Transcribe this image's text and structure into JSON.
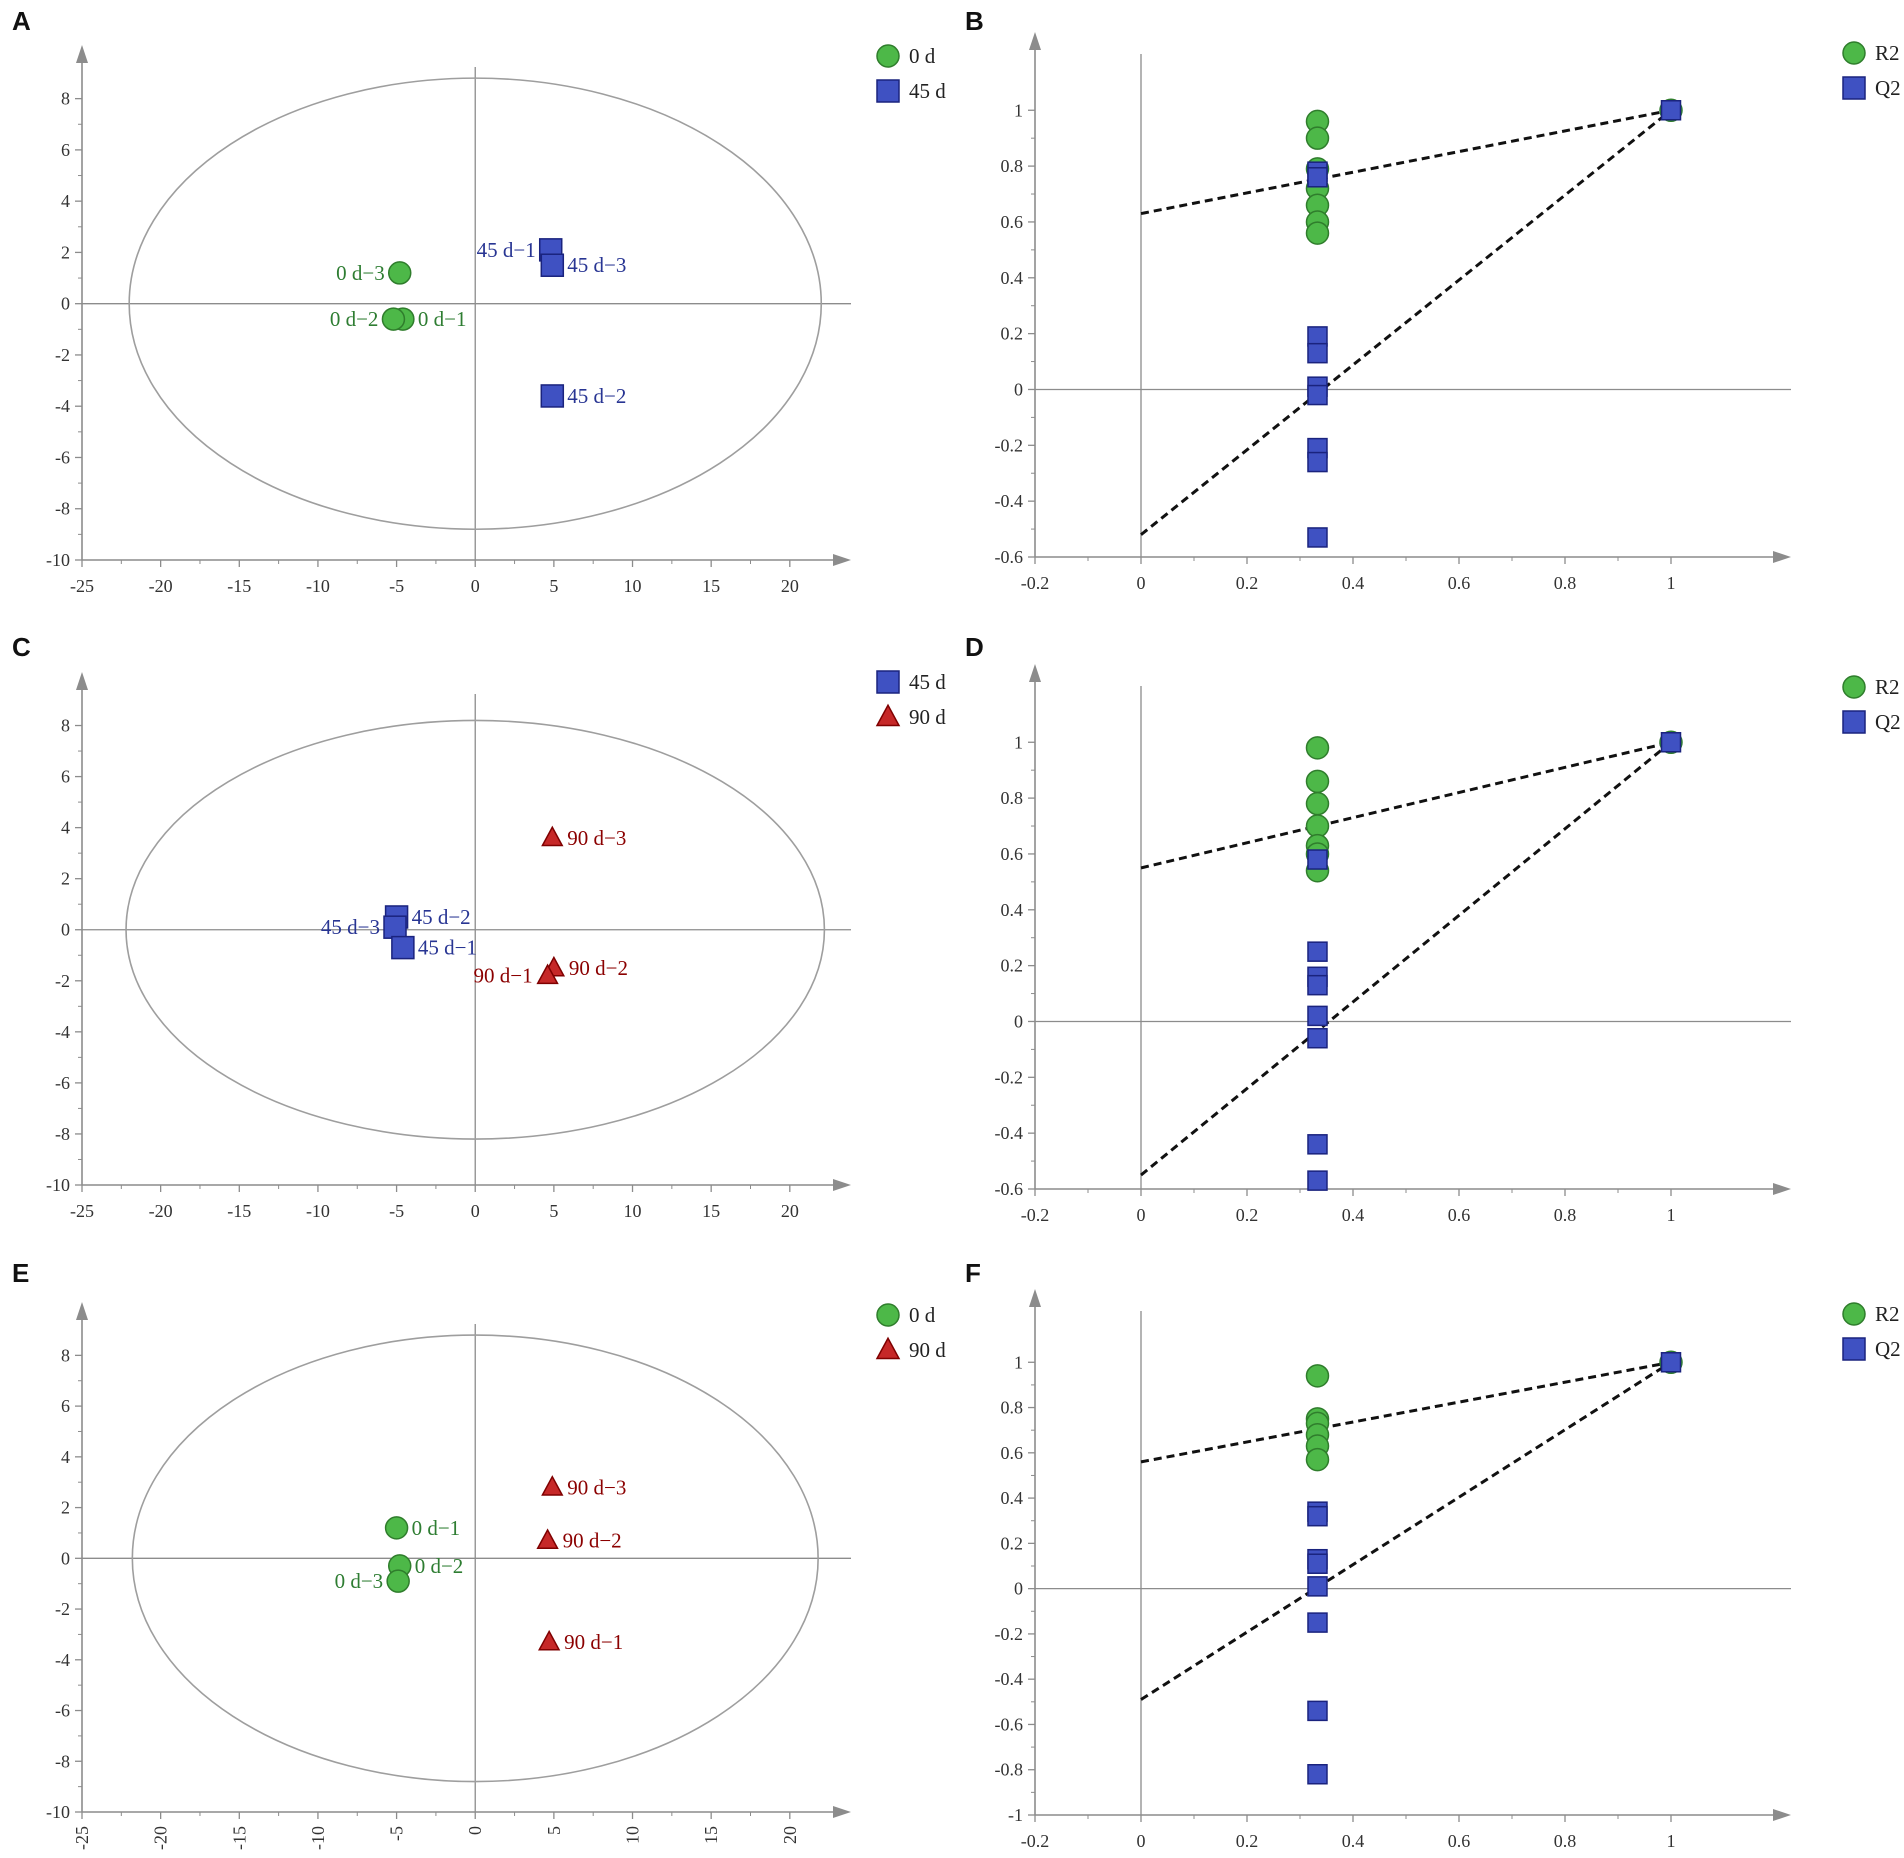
{
  "colors": {
    "green": "#4db848",
    "green_stroke": "#2f7d2c",
    "green_text": "#2e7d32",
    "blue": "#3f51c2",
    "blue_stroke": "#1a237e",
    "blue_text": "#283593",
    "red": "#c62828",
    "red_stroke": "#7f0000",
    "red_text": "#8b0000",
    "axis": "#8c8c8c",
    "trend": "#111111"
  },
  "chart_data": [
    {
      "id": "A",
      "letter": "A",
      "type": "scatter",
      "xlim": [
        -25,
        23
      ],
      "ylim": [
        -10,
        9
      ],
      "xticks": [
        -25,
        -20,
        -15,
        -10,
        -5,
        0,
        5,
        10,
        15,
        20
      ],
      "yticks": [
        -10,
        -8,
        -6,
        -4,
        -2,
        0,
        2,
        4,
        6,
        8
      ],
      "ellipse": {
        "rx": 22,
        "ry": 8.8
      },
      "legend": [
        {
          "label": "0 d",
          "marker": "circle",
          "color": "green"
        },
        {
          "label": "45 d",
          "marker": "square",
          "color": "blue"
        }
      ],
      "points": [
        {
          "label": "0 d−1",
          "x": -4.6,
          "y": -0.6,
          "marker": "circle",
          "color": "green",
          "label_side": "right"
        },
        {
          "label": "0 d−2",
          "x": -5.2,
          "y": -0.6,
          "marker": "circle",
          "color": "green",
          "label_side": "left"
        },
        {
          "label": "0 d−3",
          "x": -4.8,
          "y": 1.2,
          "marker": "circle",
          "color": "green",
          "label_side": "left"
        },
        {
          "label": "45 d−1",
          "x": 4.8,
          "y": 2.1,
          "marker": "square",
          "color": "blue",
          "label_side": "left"
        },
        {
          "label": "45 d−3",
          "x": 4.9,
          "y": 1.5,
          "marker": "square",
          "color": "blue",
          "label_side": "right"
        },
        {
          "label": "45 d−2",
          "x": 4.9,
          "y": -3.6,
          "marker": "square",
          "color": "blue",
          "label_side": "right"
        }
      ]
    },
    {
      "id": "B",
      "letter": "B",
      "type": "scatter",
      "xlim": [
        -0.2,
        1.2
      ],
      "ylim": [
        -0.6,
        1.18
      ],
      "xticks": [
        -0.2,
        0,
        0.2,
        0.4,
        0.6,
        0.8,
        1
      ],
      "xtick_labels": [
        "-0.2",
        "0",
        "0.2",
        "0.4",
        "0.6",
        "0.8",
        "1"
      ],
      "yticks": [
        -0.6,
        -0.4,
        -0.2,
        0,
        0.2,
        0.4,
        0.6,
        0.8,
        1
      ],
      "ytick_labels": [
        "-0.6",
        "-0.4",
        "-0.2",
        "0",
        "0.2",
        "0.4",
        "0.6",
        "0.8",
        "1"
      ],
      "legend": [
        {
          "label": "R2",
          "marker": "circle",
          "color": "green"
        },
        {
          "label": "Q2",
          "marker": "square",
          "color": "blue"
        }
      ],
      "x_perm": 0.333,
      "r2": [
        0.96,
        0.9,
        0.79,
        0.72,
        0.66,
        0.6,
        0.56
      ],
      "q2": [
        0.78,
        0.76,
        0.19,
        0.13,
        0.01,
        -0.02,
        -0.21,
        -0.26,
        -0.53
      ],
      "r2_orig": 1.0,
      "q2_orig": 1.0,
      "r2_intercept": 0.63,
      "q2_intercept": -0.52
    },
    {
      "id": "C",
      "letter": "C",
      "type": "scatter",
      "xlim": [
        -25,
        23
      ],
      "ylim": [
        -10,
        9
      ],
      "xticks": [
        -25,
        -20,
        -15,
        -10,
        -5,
        0,
        5,
        10,
        15,
        20
      ],
      "yticks": [
        -10,
        -8,
        -6,
        -4,
        -2,
        0,
        2,
        4,
        6,
        8
      ],
      "ellipse": {
        "rx": 22.2,
        "ry": 8.2
      },
      "legend": [
        {
          "label": "45 d",
          "marker": "square",
          "color": "blue"
        },
        {
          "label": "90 d",
          "marker": "triangle",
          "color": "red"
        }
      ],
      "points": [
        {
          "label": "45 d−2",
          "x": -5.0,
          "y": 0.5,
          "marker": "square",
          "color": "blue",
          "label_side": "right"
        },
        {
          "label": "45 d−3",
          "x": -5.1,
          "y": 0.1,
          "marker": "square",
          "color": "blue",
          "label_side": "left"
        },
        {
          "label": "45 d−1",
          "x": -4.6,
          "y": -0.7,
          "marker": "square",
          "color": "blue",
          "label_side": "right"
        },
        {
          "label": "90 d−3",
          "x": 4.9,
          "y": 3.6,
          "marker": "triangle",
          "color": "red",
          "label_side": "right"
        },
        {
          "label": "90 d−2",
          "x": 5.0,
          "y": -1.5,
          "marker": "triangle",
          "color": "red",
          "label_side": "right"
        },
        {
          "label": "90 d−1",
          "x": 4.6,
          "y": -1.8,
          "marker": "triangle",
          "color": "red",
          "label_side": "left"
        }
      ]
    },
    {
      "id": "D",
      "letter": "D",
      "type": "scatter",
      "xlim": [
        -0.2,
        1.2
      ],
      "ylim": [
        -0.6,
        1.18
      ],
      "xticks": [
        -0.2,
        0,
        0.2,
        0.4,
        0.6,
        0.8,
        1
      ],
      "xtick_labels": [
        "-0.2",
        "0",
        "0.2",
        "0.4",
        "0.6",
        "0.8",
        "1"
      ],
      "yticks": [
        -0.6,
        -0.4,
        -0.2,
        0,
        0.2,
        0.4,
        0.6,
        0.8,
        1
      ],
      "ytick_labels": [
        "-0.6",
        "-0.4",
        "-0.2",
        "0",
        "0.2",
        "0.4",
        "0.6",
        "0.8",
        "1"
      ],
      "legend": [
        {
          "label": "R2",
          "marker": "circle",
          "color": "green"
        },
        {
          "label": "Q2",
          "marker": "square",
          "color": "blue"
        }
      ],
      "x_perm": 0.333,
      "r2": [
        0.98,
        0.86,
        0.78,
        0.7,
        0.63,
        0.6,
        0.54
      ],
      "q2": [
        0.58,
        0.25,
        0.16,
        0.13,
        0.02,
        -0.06,
        -0.44,
        -0.57
      ],
      "r2_orig": 1.0,
      "q2_orig": 1.0,
      "r2_intercept": 0.55,
      "q2_intercept": -0.55
    },
    {
      "id": "E",
      "letter": "E",
      "type": "scatter",
      "xlim": [
        -25,
        23
      ],
      "ylim": [
        -10,
        9
      ],
      "xticks": [
        -25,
        -20,
        -15,
        -10,
        -5,
        0,
        5,
        10,
        15,
        20
      ],
      "yticks": [
        -10,
        -8,
        -6,
        -4,
        -2,
        0,
        2,
        4,
        6,
        8
      ],
      "ellipse": {
        "rx": 21.8,
        "ry": 8.8
      },
      "rotated_xticks": true,
      "legend": [
        {
          "label": "0 d",
          "marker": "circle",
          "color": "green"
        },
        {
          "label": "90 d",
          "marker": "triangle",
          "color": "red"
        }
      ],
      "points": [
        {
          "label": "0 d−1",
          "x": -5.0,
          "y": 1.2,
          "marker": "circle",
          "color": "green",
          "label_side": "right"
        },
        {
          "label": "0 d−2",
          "x": -4.8,
          "y": -0.3,
          "marker": "circle",
          "color": "green",
          "label_side": "right"
        },
        {
          "label": "0 d−3",
          "x": -4.9,
          "y": -0.9,
          "marker": "circle",
          "color": "green",
          "label_side": "left"
        },
        {
          "label": "90 d−3",
          "x": 4.9,
          "y": 2.8,
          "marker": "triangle",
          "color": "red",
          "label_side": "right"
        },
        {
          "label": "90 d−2",
          "x": 4.6,
          "y": 0.7,
          "marker": "triangle",
          "color": "red",
          "label_side": "right"
        },
        {
          "label": "90 d−1",
          "x": 4.7,
          "y": -3.3,
          "marker": "triangle",
          "color": "red",
          "label_side": "right"
        }
      ]
    },
    {
      "id": "F",
      "letter": "F",
      "type": "scatter",
      "xlim": [
        -0.2,
        1.2
      ],
      "ylim": [
        -1.0,
        1.2
      ],
      "xticks": [
        -0.2,
        0,
        0.2,
        0.4,
        0.6,
        0.8,
        1
      ],
      "xtick_labels": [
        "-0.2",
        "0",
        "0.2",
        "0.4",
        "0.6",
        "0.8",
        "1"
      ],
      "yticks": [
        -1,
        -0.8,
        -0.6,
        -0.4,
        -0.2,
        0,
        0.2,
        0.4,
        0.6,
        0.8,
        1
      ],
      "ytick_labels": [
        "-1",
        "-0.8",
        "-0.6",
        "-0.4",
        "-0.2",
        "0",
        "0.2",
        "0.4",
        "0.6",
        "0.8",
        "1"
      ],
      "legend": [
        {
          "label": "R2",
          "marker": "circle",
          "color": "green"
        },
        {
          "label": "Q2",
          "marker": "square",
          "color": "blue"
        }
      ],
      "x_perm": 0.333,
      "r2": [
        0.94,
        0.75,
        0.73,
        0.68,
        0.63,
        0.57
      ],
      "q2": [
        0.34,
        0.32,
        0.13,
        0.11,
        0.01,
        -0.15,
        -0.54,
        -0.82
      ],
      "r2_orig": 1.0,
      "q2_orig": 1.0,
      "r2_intercept": 0.56,
      "q2_intercept": -0.49
    }
  ]
}
